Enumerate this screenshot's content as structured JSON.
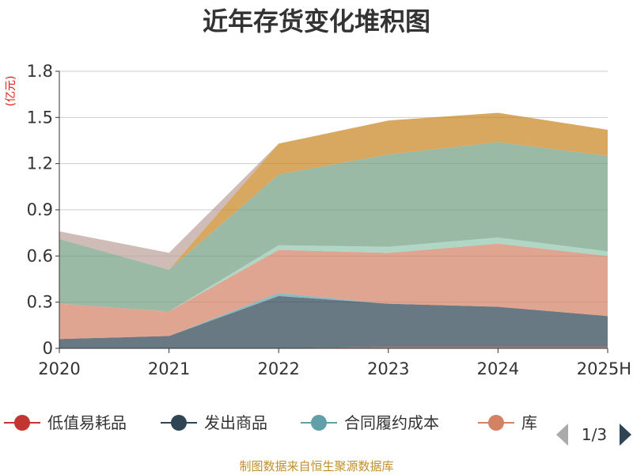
{
  "chart_data": {
    "type": "area",
    "stacked": true,
    "title": "近年存货变化堆积图",
    "unit_label": "(亿元)",
    "categories": [
      "2020",
      "2021",
      "2022",
      "2023",
      "2024",
      "2025H"
    ],
    "ylim": [
      0,
      1.8
    ],
    "yticks": [
      "0",
      "0.3",
      "0.6",
      "0.9",
      "1.2",
      "1.5",
      "1.8"
    ],
    "grid": true,
    "series": [
      {
        "name": "低值易耗品",
        "color": "#c23531",
        "values": [
          0.0,
          0.0,
          0.0,
          0.01,
          0.01,
          0.01
        ]
      },
      {
        "name": "发出商品",
        "color": "#2f4554",
        "values": [
          0.06,
          0.08,
          0.34,
          0.28,
          0.26,
          0.2
        ]
      },
      {
        "name": "合同履约成本",
        "color": "#61a0a8",
        "values": [
          0.0,
          0.0,
          0.02,
          0.0,
          0.0,
          0.0
        ]
      },
      {
        "name": "库存商品",
        "color": "#d48265",
        "values": [
          0.23,
          0.16,
          0.28,
          0.33,
          0.41,
          0.39
        ]
      },
      {
        "name": "",
        "color": "#91c7ae",
        "values": [
          0.0,
          0.0,
          0.03,
          0.04,
          0.04,
          0.03
        ]
      },
      {
        "name": "",
        "color": "#749f83",
        "values": [
          0.42,
          0.27,
          0.46,
          0.6,
          0.62,
          0.62
        ]
      },
      {
        "name": "",
        "color": "#ca8622",
        "values": [
          0.0,
          0.0,
          0.2,
          0.22,
          0.19,
          0.17
        ]
      },
      {
        "name": "",
        "color": "#bda29a",
        "values": [
          0.05,
          0.11,
          0.0,
          0.0,
          0.0,
          0.0
        ]
      }
    ],
    "legend_position": "bottom",
    "legend_visible_labels": [
      "低值易耗品",
      "发出商品",
      "合同履约成本",
      "库"
    ],
    "legend_page": "1/3"
  },
  "footer": {
    "source": "制图数据来自恒生聚源数据库"
  }
}
